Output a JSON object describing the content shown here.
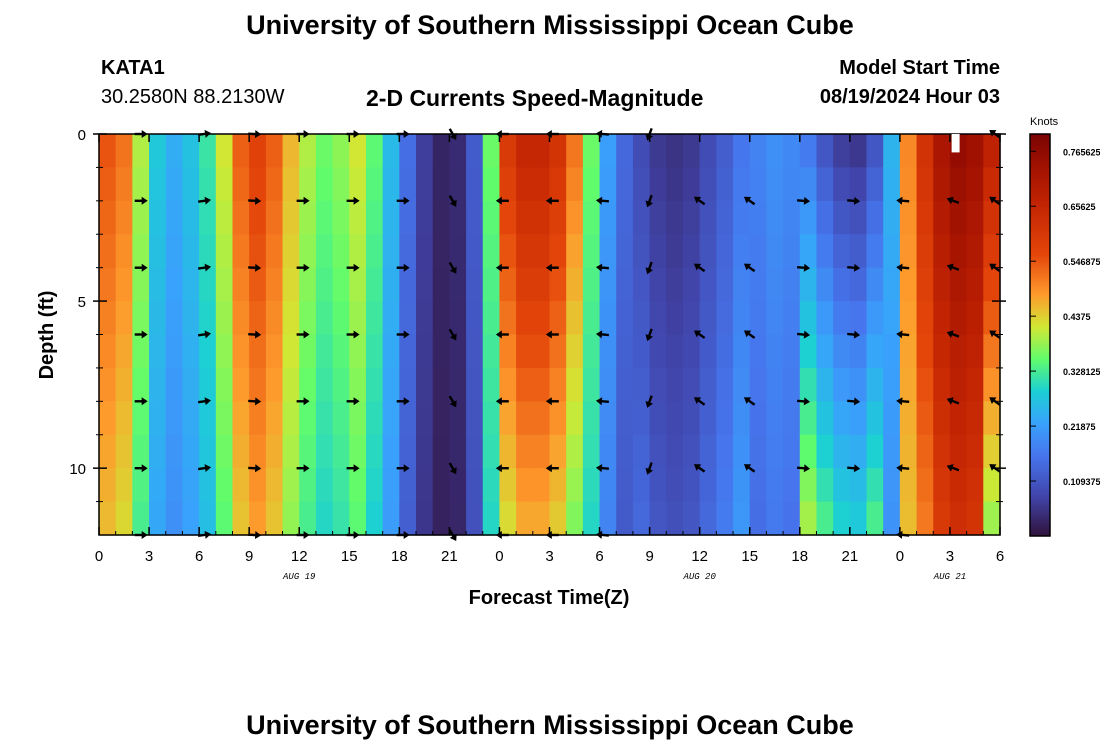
{
  "header": {
    "title": "University of Southern Mississippi Ocean Cube",
    "station": "KATA1",
    "coords": "30.2580N  88.2130W",
    "product": "2-D Currents Speed-Magnitude",
    "model_label": "Model Start Time",
    "model_time": "08/19/2024 Hour 03",
    "footer_title": "University of Southern Mississippi Ocean Cube"
  },
  "chart_data": {
    "type": "heatmap",
    "title": "2-D Currents Speed-Magnitude",
    "xlabel": "Forecast Time(Z)",
    "ylabel": "Depth (ft)",
    "x_ticks": [
      "0",
      "3",
      "6",
      "9",
      "12",
      "15",
      "18",
      "21",
      "0",
      "3",
      "6",
      "9",
      "12",
      "15",
      "18",
      "21",
      "0",
      "3",
      "6"
    ],
    "date_labels": [
      {
        "label": "AUG 19",
        "hour": 12
      },
      {
        "label": "AUG 20",
        "hour": 36
      },
      {
        "label": "AUG 21",
        "hour": 51
      }
    ],
    "xlim_hours": [
      0,
      54
    ],
    "y_ticks": [
      "0",
      "5",
      "10"
    ],
    "ylim_ft": [
      0,
      12
    ],
    "colorbar": {
      "unit": "Knots",
      "tick_labels": [
        "0.765625",
        "0.65625",
        "0.546875",
        "0.4375",
        "0.328125",
        "0.21875",
        "0.109375"
      ],
      "tick_values": [
        0.765625,
        0.65625,
        0.546875,
        0.4375,
        0.328125,
        0.21875,
        0.109375
      ],
      "range": [
        0,
        0.8
      ]
    },
    "depth_levels_ft": [
      0,
      2,
      4,
      6,
      8,
      10,
      12
    ],
    "speed_profile_by_hour": [
      [
        0,
        0.55
      ],
      [
        1,
        0.52
      ],
      [
        2,
        0.4
      ],
      [
        3,
        0.28
      ],
      [
        4,
        0.24
      ],
      [
        5,
        0.27
      ],
      [
        6,
        0.32
      ],
      [
        7,
        0.42
      ],
      [
        8,
        0.54
      ],
      [
        9,
        0.58
      ],
      [
        10,
        0.54
      ],
      [
        11,
        0.46
      ],
      [
        12,
        0.4
      ],
      [
        13,
        0.36
      ],
      [
        14,
        0.38
      ],
      [
        15,
        0.42
      ],
      [
        16,
        0.35
      ],
      [
        17,
        0.26
      ],
      [
        18,
        0.15
      ],
      [
        19,
        0.07
      ],
      [
        20,
        0.03
      ],
      [
        21,
        0.04
      ],
      [
        22,
        0.12
      ],
      [
        23,
        0.36
      ],
      [
        24,
        0.6
      ],
      [
        25,
        0.66
      ],
      [
        26,
        0.66
      ],
      [
        27,
        0.62
      ],
      [
        28,
        0.52
      ],
      [
        29,
        0.36
      ],
      [
        30,
        0.22
      ],
      [
        31,
        0.14
      ],
      [
        32,
        0.09
      ],
      [
        33,
        0.06
      ],
      [
        34,
        0.05
      ],
      [
        35,
        0.06
      ],
      [
        36,
        0.09
      ],
      [
        37,
        0.12
      ],
      [
        38,
        0.16
      ],
      [
        39,
        0.18
      ],
      [
        40,
        0.2
      ],
      [
        41,
        0.19
      ],
      [
        42,
        0.16
      ],
      [
        43,
        0.1
      ],
      [
        44,
        0.06
      ],
      [
        45,
        0.05
      ],
      [
        46,
        0.1
      ],
      [
        47,
        0.2
      ],
      [
        48,
        0.45
      ],
      [
        49,
        0.62
      ],
      [
        50,
        0.72
      ],
      [
        51,
        0.76
      ],
      [
        52,
        0.74
      ],
      [
        53,
        0.68
      ],
      [
        54,
        0.58
      ]
    ],
    "arrows": [
      {
        "hour": 2.5,
        "depths": [
          0,
          2,
          4,
          6,
          8,
          10,
          12
        ],
        "angle_deg": 0
      },
      {
        "hour": 6.3,
        "depths": [
          0,
          2,
          4,
          6,
          8,
          10,
          12
        ],
        "angle_deg": -8
      },
      {
        "hour": 9.3,
        "depths": [
          0,
          2,
          4,
          6,
          8,
          10,
          12
        ],
        "angle_deg": 3
      },
      {
        "hour": 12.2,
        "depths": [
          0,
          2,
          4,
          6,
          8,
          10,
          12
        ],
        "angle_deg": 0
      },
      {
        "hour": 15.2,
        "depths": [
          0,
          2,
          4,
          6,
          8,
          10,
          12
        ],
        "angle_deg": 0
      },
      {
        "hour": 18.2,
        "depths": [
          0,
          2,
          4,
          6,
          8,
          10,
          12
        ],
        "angle_deg": 0
      },
      {
        "hour": 21.2,
        "depths": [
          0,
          2,
          4,
          6,
          8,
          10,
          12
        ],
        "angle_deg": 60
      },
      {
        "hour": 24.2,
        "depths": [
          0,
          2,
          4,
          6,
          8,
          10,
          12
        ],
        "angle_deg": 180
      },
      {
        "hour": 27.2,
        "depths": [
          0,
          2,
          4,
          6,
          8,
          10,
          12
        ],
        "angle_deg": 180
      },
      {
        "hour": 30.2,
        "depths": [
          0,
          2,
          4,
          6,
          8,
          10,
          12
        ],
        "angle_deg": 185
      },
      {
        "hour": 33.0,
        "depths": [
          0,
          2,
          4,
          6,
          8,
          10
        ],
        "angle_deg": 110
      },
      {
        "hour": 36.0,
        "depths": [
          2,
          4,
          6,
          8,
          10
        ],
        "angle_deg": 215
      },
      {
        "hour": 39.0,
        "depths": [
          2,
          4,
          6,
          8,
          10
        ],
        "angle_deg": 215
      },
      {
        "hour": 42.2,
        "depths": [
          2,
          4,
          6,
          8,
          10
        ],
        "angle_deg": 5
      },
      {
        "hour": 45.2,
        "depths": [
          2,
          4,
          6,
          8,
          10
        ],
        "angle_deg": 5
      },
      {
        "hour": 48.2,
        "depths": [
          2,
          4,
          6,
          8,
          10,
          12
        ],
        "angle_deg": 185
      },
      {
        "hour": 51.2,
        "depths": [
          2,
          4,
          6,
          8,
          10
        ],
        "angle_deg": 200
      },
      {
        "hour": 53.7,
        "depths": [
          0,
          2,
          4,
          6,
          8,
          10
        ],
        "angle_deg": 215
      }
    ]
  }
}
